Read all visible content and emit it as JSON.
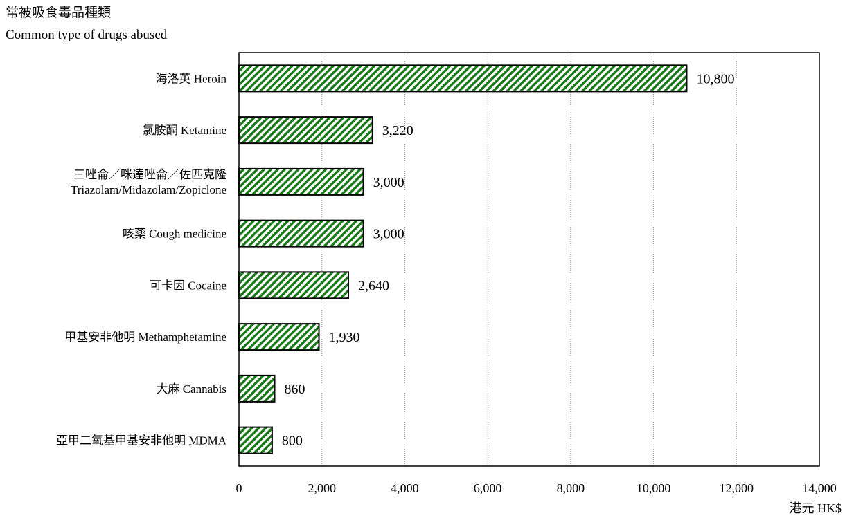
{
  "chart_data": {
    "type": "bar",
    "orientation": "horizontal",
    "ylabel_zh": "常被吸食毒品種類",
    "ylabel_en": "Common type of drugs abused",
    "xlabel": "港元 HK$",
    "xlim": [
      0,
      14000
    ],
    "xticks": [
      0,
      2000,
      4000,
      6000,
      8000,
      10000,
      12000,
      14000
    ],
    "xtick_labels": [
      "0",
      "2,000",
      "4,000",
      "6,000",
      "8,000",
      "10,000",
      "12,000",
      "14,000"
    ],
    "grid": "vertical dotted",
    "categories": [
      [
        "海洛英 Heroin"
      ],
      [
        "氯胺酮 Ketamine"
      ],
      [
        "三唑侖／咪達唑侖／佐匹克隆",
        "Triazolam/Midazolam/Zopiclone"
      ],
      [
        "咳藥 Cough medicine"
      ],
      [
        "可卡因 Cocaine"
      ],
      [
        "甲基安非他明 Methamphetamine"
      ],
      [
        "大麻 Cannabis"
      ],
      [
        "亞甲二氧基甲基安非他明 MDMA"
      ]
    ],
    "values": [
      10800,
      3220,
      3000,
      3000,
      2640,
      1930,
      860,
      800
    ],
    "value_labels": [
      "10,800",
      "3,220",
      "3,000",
      "3,000",
      "2,640",
      "1,930",
      "860",
      "800"
    ],
    "bar_color": "#1a7a1a",
    "bar_pattern": "green-white diagonal hatch"
  }
}
